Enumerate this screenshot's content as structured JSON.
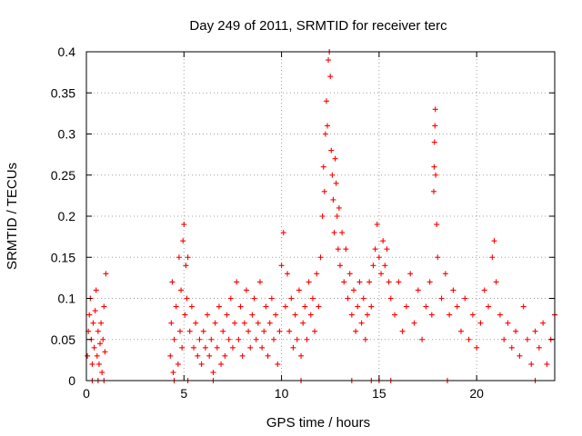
{
  "chart_data": {
    "type": "scatter",
    "title": "Day 249 of 2011, SRMTID for receiver terc",
    "xlabel": "GPS time / hours",
    "ylabel": "SRMTID / TECUs",
    "xlim": [
      0,
      24
    ],
    "ylim": [
      0,
      0.4
    ],
    "x_ticks": [
      0,
      5,
      10,
      15,
      20
    ],
    "y_ticks": [
      0,
      0.05,
      0.1,
      0.15,
      0.2,
      0.25,
      0.3,
      0.35,
      0.4
    ],
    "x_tick_labels": [
      "0",
      "5",
      "10",
      "15",
      "20"
    ],
    "y_tick_labels": [
      "0",
      "0.05",
      "0.1",
      "0.15",
      "0.2",
      "0.25",
      "0.3",
      "0.35",
      "0.4"
    ],
    "grid": true,
    "marker": "+",
    "color": "#ff0000",
    "points": [
      [
        0.05,
        0.03
      ],
      [
        0.1,
        0.06
      ],
      [
        0.15,
        0.08
      ],
      [
        0.2,
        0.1
      ],
      [
        0.25,
        0.05
      ],
      [
        0.3,
        0.02
      ],
      [
        0.35,
        0.07
      ],
      [
        0.4,
        0.04
      ],
      [
        0.45,
        0.085
      ],
      [
        0.5,
        0.11
      ],
      [
        0.55,
        0.03
      ],
      [
        0.6,
        0.06
      ],
      [
        0.65,
        0.02
      ],
      [
        0.7,
        0.045
      ],
      [
        0.75,
        0.07
      ],
      [
        0.8,
        0.01
      ],
      [
        0.85,
        0.05
      ],
      [
        0.9,
        0.09
      ],
      [
        0.95,
        0.035
      ],
      [
        1.0,
        0.13
      ],
      [
        0.3,
        0.0
      ],
      [
        0.6,
        0.0
      ],
      [
        0.9,
        0.0
      ],
      [
        4.3,
        0.03
      ],
      [
        4.35,
        0.07
      ],
      [
        4.4,
        0.12
      ],
      [
        4.45,
        0.01
      ],
      [
        4.5,
        0.05
      ],
      [
        4.6,
        0.09
      ],
      [
        4.7,
        0.02
      ],
      [
        4.75,
        0.15
      ],
      [
        4.8,
        0.06
      ],
      [
        4.85,
        0.11
      ],
      [
        4.9,
        0.04
      ],
      [
        4.95,
        0.17
      ],
      [
        5.0,
        0.19
      ],
      [
        5.05,
        0.08
      ],
      [
        5.1,
        0.14
      ],
      [
        5.15,
        0.1
      ],
      [
        5.2,
        0.15
      ],
      [
        5.3,
        0.06
      ],
      [
        5.4,
        0.09
      ],
      [
        5.5,
        0.04
      ],
      [
        5.6,
        0.07
      ],
      [
        5.7,
        0.03
      ],
      [
        5.8,
        0.05
      ],
      [
        5.9,
        0.02
      ],
      [
        6.0,
        0.06
      ],
      [
        6.1,
        0.04
      ],
      [
        6.2,
        0.08
      ],
      [
        6.3,
        0.03
      ],
      [
        6.4,
        0.05
      ],
      [
        6.5,
        0.01
      ],
      [
        6.6,
        0.07
      ],
      [
        6.7,
        0.04
      ],
      [
        6.8,
        0.09
      ],
      [
        6.9,
        0.02
      ],
      [
        4.5,
        0.0
      ],
      [
        5.2,
        0.0
      ],
      [
        6.5,
        0.0
      ],
      [
        7.0,
        0.06
      ],
      [
        7.1,
        0.03
      ],
      [
        7.2,
        0.08
      ],
      [
        7.3,
        0.05
      ],
      [
        7.4,
        0.1
      ],
      [
        7.5,
        0.04
      ],
      [
        7.6,
        0.07
      ],
      [
        7.7,
        0.12
      ],
      [
        7.8,
        0.05
      ],
      [
        7.9,
        0.09
      ],
      [
        8.0,
        0.03
      ],
      [
        8.1,
        0.07
      ],
      [
        8.2,
        0.11
      ],
      [
        8.3,
        0.06
      ],
      [
        8.4,
        0.04
      ],
      [
        8.5,
        0.08
      ],
      [
        8.6,
        0.1
      ],
      [
        8.7,
        0.05
      ],
      [
        8.8,
        0.07
      ],
      [
        8.9,
        0.12
      ],
      [
        9.0,
        0.04
      ],
      [
        9.1,
        0.06
      ],
      [
        9.2,
        0.09
      ],
      [
        9.3,
        0.03
      ],
      [
        9.4,
        0.07
      ],
      [
        9.5,
        0.1
      ],
      [
        9.6,
        0.05
      ],
      [
        9.7,
        0.08
      ],
      [
        9.8,
        0.02
      ],
      [
        9.9,
        0.06
      ],
      [
        10.0,
        0.14
      ],
      [
        10.1,
        0.18
      ],
      [
        10.2,
        0.09
      ],
      [
        10.3,
        0.13
      ],
      [
        10.4,
        0.06
      ],
      [
        10.5,
        0.1
      ],
      [
        10.6,
        0.04
      ],
      [
        10.7,
        0.08
      ],
      [
        10.8,
        0.05
      ],
      [
        10.9,
        0.11
      ],
      [
        11.0,
        0.03
      ],
      [
        11.1,
        0.07
      ],
      [
        11.2,
        0.09
      ],
      [
        11.0,
        0.0
      ],
      [
        11.3,
        0.05
      ],
      [
        11.4,
        0.12
      ],
      [
        11.5,
        0.08
      ],
      [
        11.6,
        0.1
      ],
      [
        11.7,
        0.06
      ],
      [
        11.8,
        0.13
      ],
      [
        11.9,
        0.09
      ],
      [
        12.0,
        0.15
      ],
      [
        12.1,
        0.2
      ],
      [
        12.15,
        0.26
      ],
      [
        12.2,
        0.23
      ],
      [
        12.25,
        0.3
      ],
      [
        12.3,
        0.34
      ],
      [
        12.35,
        0.31
      ],
      [
        12.4,
        0.39
      ],
      [
        12.45,
        0.4
      ],
      [
        12.5,
        0.37
      ],
      [
        12.55,
        0.28
      ],
      [
        12.6,
        0.25
      ],
      [
        12.65,
        0.22
      ],
      [
        12.7,
        0.18
      ],
      [
        12.75,
        0.27
      ],
      [
        12.8,
        0.24
      ],
      [
        12.85,
        0.2
      ],
      [
        12.9,
        0.16
      ],
      [
        12.95,
        0.21
      ],
      [
        13.0,
        0.14
      ],
      [
        13.1,
        0.18
      ],
      [
        13.2,
        0.12
      ],
      [
        13.3,
        0.16
      ],
      [
        13.4,
        0.1
      ],
      [
        13.5,
        0.13
      ],
      [
        13.6,
        0.08
      ],
      [
        13.7,
        0.11
      ],
      [
        13.8,
        0.06
      ],
      [
        13.9,
        0.09
      ],
      [
        14.0,
        0.12
      ],
      [
        14.1,
        0.07
      ],
      [
        14.2,
        0.1
      ],
      [
        14.3,
        0.05
      ],
      [
        14.4,
        0.08
      ],
      [
        14.5,
        0.12
      ],
      [
        14.6,
        0.09
      ],
      [
        14.7,
        0.14
      ],
      [
        14.8,
        0.16
      ],
      [
        14.9,
        0.19
      ],
      [
        15.0,
        0.15
      ],
      [
        15.1,
        0.13
      ],
      [
        15.2,
        0.17
      ],
      [
        15.3,
        0.14
      ],
      [
        15.4,
        0.16
      ],
      [
        15.5,
        0.12
      ],
      [
        13.6,
        0.0
      ],
      [
        14.6,
        0.0
      ],
      [
        15.0,
        0.0
      ],
      [
        15.6,
        0.0
      ],
      [
        15.6,
        0.1
      ],
      [
        15.8,
        0.08
      ],
      [
        16.0,
        0.12
      ],
      [
        16.2,
        0.06
      ],
      [
        16.4,
        0.09
      ],
      [
        16.6,
        0.13
      ],
      [
        16.8,
        0.07
      ],
      [
        17.0,
        0.11
      ],
      [
        17.2,
        0.05
      ],
      [
        17.4,
        0.09
      ],
      [
        17.6,
        0.12
      ],
      [
        17.7,
        0.08
      ],
      [
        17.8,
        0.23
      ],
      [
        17.82,
        0.26
      ],
      [
        17.84,
        0.29
      ],
      [
        17.86,
        0.31
      ],
      [
        17.88,
        0.33
      ],
      [
        17.9,
        0.25
      ],
      [
        17.95,
        0.19
      ],
      [
        18.0,
        0.15
      ],
      [
        18.2,
        0.1
      ],
      [
        18.4,
        0.13
      ],
      [
        18.6,
        0.08
      ],
      [
        18.8,
        0.11
      ],
      [
        19.0,
        0.09
      ],
      [
        19.2,
        0.06
      ],
      [
        19.4,
        0.1
      ],
      [
        19.6,
        0.05
      ],
      [
        19.8,
        0.08
      ],
      [
        20.0,
        0.04
      ],
      [
        20.2,
        0.07
      ],
      [
        20.4,
        0.11
      ],
      [
        20.6,
        0.09
      ],
      [
        20.8,
        0.15
      ],
      [
        20.9,
        0.17
      ],
      [
        21.0,
        0.12
      ],
      [
        21.2,
        0.08
      ],
      [
        21.4,
        0.05
      ],
      [
        21.6,
        0.07
      ],
      [
        21.8,
        0.04
      ],
      [
        22.0,
        0.06
      ],
      [
        22.2,
        0.03
      ],
      [
        22.4,
        0.09
      ],
      [
        22.6,
        0.05
      ],
      [
        22.8,
        0.02
      ],
      [
        23.0,
        0.06
      ],
      [
        23.2,
        0.04
      ],
      [
        23.4,
        0.07
      ],
      [
        23.6,
        0.02
      ],
      [
        23.8,
        0.05
      ],
      [
        24.0,
        0.08
      ],
      [
        18.5,
        0.0
      ],
      [
        23.0,
        0.0
      ]
    ]
  }
}
